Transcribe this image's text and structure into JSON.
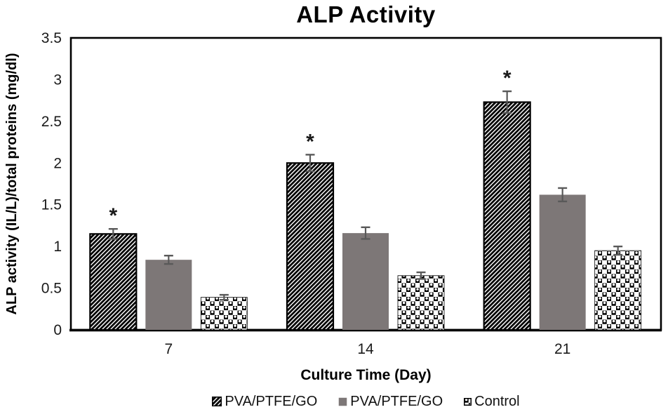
{
  "chart_data": {
    "type": "bar",
    "title": "ALP Activity",
    "xlabel": "Culture Time (Day)",
    "ylabel": "ALP activity (IL/L)/total proteins (mg/dl)",
    "categories": [
      "7",
      "14",
      "21"
    ],
    "series": [
      {
        "name": "PVA/PTFE/GO",
        "pattern": "diagonal-hatch",
        "values": [
          1.15,
          2.0,
          2.73
        ],
        "errors": [
          0.06,
          0.1,
          0.13
        ],
        "significance": [
          "*",
          "*",
          "*"
        ]
      },
      {
        "name": "PVA/PTFE/GO",
        "pattern": "solid",
        "color": "#7d7777",
        "values": [
          0.84,
          1.16,
          1.62
        ],
        "errors": [
          0.05,
          0.07,
          0.08
        ],
        "significance": null
      },
      {
        "name": "Control",
        "pattern": "checker-balls",
        "values": [
          0.39,
          0.65,
          0.95
        ],
        "errors": [
          0.03,
          0.04,
          0.05
        ],
        "significance": null
      }
    ],
    "ylim": [
      0,
      3.5
    ],
    "ytick_step": 0.5,
    "yticks": [
      "0",
      "0.5",
      "1",
      "1.5",
      "2",
      "2.5",
      "3",
      "3.5"
    ],
    "grid": false,
    "legend_position": "bottom",
    "axis_color": "#000000",
    "error_bar_color": "#595959",
    "tick_label_color": "#1a1a1a"
  }
}
